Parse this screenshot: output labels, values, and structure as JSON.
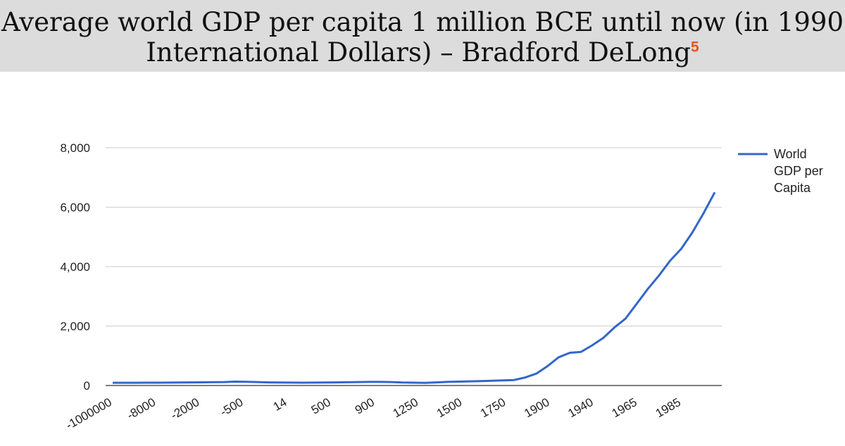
{
  "title": {
    "line1": "Average world GDP per capita 1 million BCE until now (in 1990",
    "line2": "International Dollars) – Bradford DeLong",
    "footnote": "5"
  },
  "colors": {
    "title_band": "#dcdcdc",
    "series": "#3366cc",
    "footnote": "#f0501e",
    "grid": "#cccccc"
  },
  "chart_data": {
    "type": "line",
    "title": "Average world GDP per capita 1 million BCE until now (in 1990 International Dollars) – Bradford DeLong",
    "xlabel": "",
    "ylabel": "",
    "ylim": [
      0,
      8000
    ],
    "yticks": [
      0,
      2000,
      4000,
      6000,
      8000
    ],
    "ytick_labels": [
      "0",
      "2,000",
      "4,000",
      "6,000",
      "8,000"
    ],
    "xtick_labels": [
      "-1000000",
      "-8000",
      "-2000",
      "-500",
      "14",
      "500",
      "900",
      "1250",
      "1500",
      "1750",
      "1900",
      "1940",
      "1965",
      "1985"
    ],
    "grid": true,
    "legend_position": "right",
    "series": [
      {
        "name": "World GDP per Capita",
        "legend_lines": [
          "World",
          "GDP per",
          "Capita"
        ],
        "values": [
          92,
          93,
          93,
          94,
          95,
          98,
          102,
          105,
          107,
          112,
          115,
          130,
          125,
          115,
          105,
          100,
          97,
          95,
          97,
          100,
          105,
          110,
          115,
          120,
          120,
          115,
          100,
          95,
          90,
          105,
          120,
          130,
          140,
          150,
          160,
          170,
          185,
          270,
          400,
          650,
          950,
          1100,
          1130,
          1350,
          1600,
          1950,
          2250,
          2750,
          3250,
          3700,
          4200,
          4600,
          5150,
          5800,
          6500
        ]
      }
    ]
  }
}
